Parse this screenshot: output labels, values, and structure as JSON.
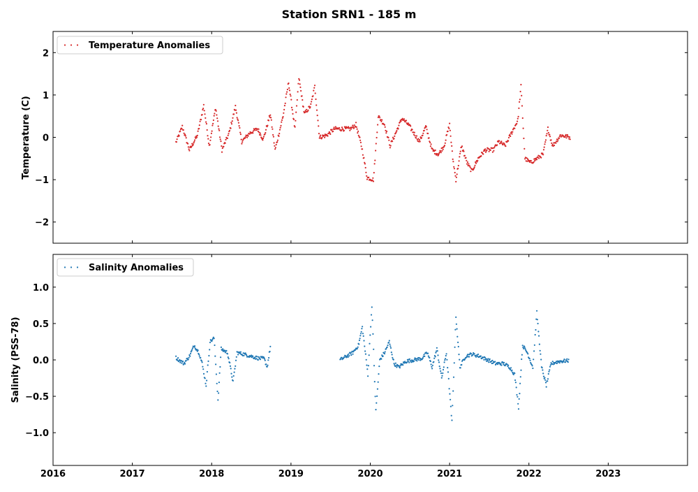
{
  "figure": {
    "title": "Station SRN1 - 185 m"
  },
  "chart_data": [
    {
      "type": "scatter",
      "ylabel": "Temperature (C)",
      "xlabel": "",
      "xlim": [
        2016.0,
        2024.0
      ],
      "ylim": [
        -2.5,
        2.5
      ],
      "yticks": [
        2,
        1,
        0,
        -1,
        -2
      ],
      "ytick_labels": [
        "2",
        "1",
        "0",
        "−1",
        "−2"
      ],
      "legend_position": "top-left",
      "grid": false,
      "series": [
        {
          "name": "Temperature Anomalies",
          "color": "#d62728",
          "anchors": [
            [
              2017.55,
              -0.12
            ],
            [
              2017.63,
              0.25
            ],
            [
              2017.72,
              -0.3
            ],
            [
              2017.82,
              0.05
            ],
            [
              2017.9,
              0.75
            ],
            [
              2017.97,
              -0.2
            ],
            [
              2018.05,
              0.7
            ],
            [
              2018.13,
              -0.3
            ],
            [
              2018.22,
              0.1
            ],
            [
              2018.3,
              0.72
            ],
            [
              2018.38,
              -0.1
            ],
            [
              2018.48,
              0.1
            ],
            [
              2018.58,
              0.2
            ],
            [
              2018.65,
              -0.05
            ],
            [
              2018.74,
              0.55
            ],
            [
              2018.8,
              -0.3
            ],
            [
              2018.9,
              0.5
            ],
            [
              2018.97,
              1.3
            ],
            [
              2019.05,
              0.2
            ],
            [
              2019.1,
              1.4
            ],
            [
              2019.17,
              0.55
            ],
            [
              2019.25,
              0.75
            ],
            [
              2019.3,
              1.2
            ],
            [
              2019.36,
              0.0
            ],
            [
              2019.45,
              0.05
            ],
            [
              2019.55,
              0.2
            ],
            [
              2019.65,
              0.2
            ],
            [
              2019.75,
              0.2
            ],
            [
              2019.82,
              0.3
            ],
            [
              2019.9,
              -0.3
            ],
            [
              2019.96,
              -0.95
            ],
            [
              2020.04,
              -1.0
            ],
            [
              2020.1,
              0.5
            ],
            [
              2020.18,
              0.3
            ],
            [
              2020.25,
              -0.2
            ],
            [
              2020.32,
              0.1
            ],
            [
              2020.4,
              0.45
            ],
            [
              2020.48,
              0.3
            ],
            [
              2020.55,
              0.1
            ],
            [
              2020.62,
              -0.1
            ],
            [
              2020.7,
              0.25
            ],
            [
              2020.78,
              -0.3
            ],
            [
              2020.86,
              -0.4
            ],
            [
              2020.93,
              -0.2
            ],
            [
              2021.0,
              0.3
            ],
            [
              2021.04,
              -0.5
            ],
            [
              2021.08,
              -1.0
            ],
            [
              2021.15,
              -0.2
            ],
            [
              2021.22,
              -0.6
            ],
            [
              2021.28,
              -0.8
            ],
            [
              2021.36,
              -0.5
            ],
            [
              2021.45,
              -0.3
            ],
            [
              2021.55,
              -0.3
            ],
            [
              2021.62,
              -0.1
            ],
            [
              2021.7,
              -0.2
            ],
            [
              2021.78,
              0.1
            ],
            [
              2021.86,
              0.4
            ],
            [
              2021.9,
              1.2
            ],
            [
              2021.95,
              -0.5
            ],
            [
              2022.02,
              -0.6
            ],
            [
              2022.1,
              -0.5
            ],
            [
              2022.18,
              -0.4
            ],
            [
              2022.24,
              0.2
            ],
            [
              2022.3,
              -0.2
            ],
            [
              2022.4,
              0.05
            ],
            [
              2022.52,
              0.0
            ]
          ]
        }
      ]
    },
    {
      "type": "scatter",
      "ylabel": "Salinity (PSS-78)",
      "xlabel": "",
      "xlim": [
        2016.0,
        2024.0
      ],
      "ylim": [
        -1.45,
        1.45
      ],
      "yticks": [
        1.0,
        0.5,
        0.0,
        -0.5,
        -1.0
      ],
      "ytick_labels": [
        "1.0",
        "0.5",
        "0.0",
        "−0.5",
        "−1.0"
      ],
      "xticks": [
        2016,
        2017,
        2018,
        2019,
        2020,
        2021,
        2022,
        2023
      ],
      "xtick_labels": [
        "2016",
        "2017",
        "2018",
        "2019",
        "2020",
        "2021",
        "2022",
        "2023"
      ],
      "legend_position": "top-left",
      "grid": false,
      "series": [
        {
          "name": "Salinity Anomalies",
          "color": "#1f77b4",
          "segments": [
            [
              [
                2017.55,
                0.03
              ],
              [
                2017.65,
                -0.05
              ],
              [
                2017.72,
                0.05
              ],
              [
                2017.78,
                0.2
              ],
              [
                2017.84,
                0.1
              ],
              [
                2017.88,
                -0.05
              ],
              [
                2017.93,
                -0.35
              ],
              [
                2017.98,
                0.25
              ],
              [
                2018.03,
                0.3
              ],
              [
                2018.08,
                -0.55
              ],
              [
                2018.12,
                0.15
              ],
              [
                2018.2,
                0.1
              ],
              [
                2018.27,
                -0.3
              ],
              [
                2018.32,
                0.1
              ],
              [
                2018.4,
                0.08
              ],
              [
                2018.5,
                0.05
              ],
              [
                2018.6,
                0.02
              ],
              [
                2018.66,
                0.02
              ],
              [
                2018.7,
                -0.1
              ],
              [
                2018.74,
                0.18
              ]
            ],
            [
              [
                2019.62,
                0.0
              ],
              [
                2019.7,
                0.05
              ],
              [
                2019.78,
                0.1
              ],
              [
                2019.85,
                0.2
              ],
              [
                2019.9,
                0.45
              ],
              [
                2019.97,
                -0.2
              ],
              [
                2020.02,
                0.75
              ],
              [
                2020.07,
                -0.7
              ],
              [
                2020.12,
                0.0
              ],
              [
                2020.18,
                0.1
              ],
              [
                2020.24,
                0.25
              ],
              [
                2020.3,
                -0.05
              ],
              [
                2020.36,
                -0.1
              ],
              [
                2020.45,
                -0.02
              ],
              [
                2020.55,
                0.0
              ],
              [
                2020.65,
                0.02
              ],
              [
                2020.72,
                0.1
              ],
              [
                2020.78,
                -0.1
              ],
              [
                2020.84,
                0.15
              ],
              [
                2020.9,
                -0.25
              ],
              [
                2020.96,
                0.1
              ],
              [
                2021.03,
                -0.85
              ],
              [
                2021.08,
                0.6
              ],
              [
                2021.13,
                -0.1
              ],
              [
                2021.2,
                0.05
              ],
              [
                2021.28,
                0.08
              ],
              [
                2021.38,
                0.05
              ],
              [
                2021.48,
                0.0
              ],
              [
                2021.58,
                -0.05
              ],
              [
                2021.68,
                -0.05
              ],
              [
                2021.76,
                -0.1
              ],
              [
                2021.82,
                -0.2
              ],
              [
                2021.87,
                -0.65
              ],
              [
                2021.92,
                0.2
              ],
              [
                2021.98,
                0.1
              ],
              [
                2022.05,
                -0.1
              ],
              [
                2022.1,
                0.65
              ],
              [
                2022.16,
                -0.1
              ],
              [
                2022.22,
                -0.35
              ],
              [
                2022.28,
                -0.05
              ],
              [
                2022.38,
                -0.02
              ],
              [
                2022.5,
                -0.01
              ]
            ]
          ]
        }
      ]
    }
  ]
}
